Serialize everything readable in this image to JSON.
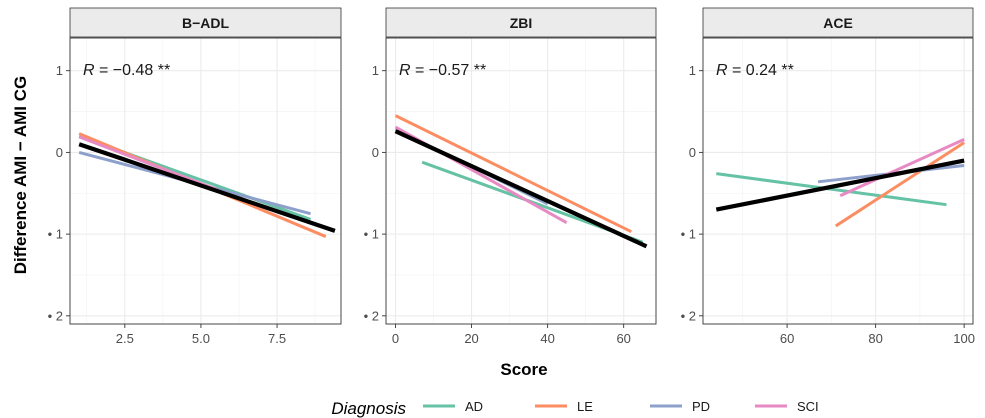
{
  "chart_data": {
    "type": "line",
    "xlabel": "Score",
    "ylabel": "Difference AMI − AMI CG",
    "ylim": [
      -2.1,
      1.4
    ],
    "yticks": [
      1,
      0,
      -1,
      -2
    ],
    "ytick_labels": [
      "1",
      "0",
      "• 1",
      "• 2"
    ],
    "grid": true,
    "legend": {
      "title": "Diagnosis",
      "placement": "bottom",
      "entries": [
        {
          "label": "AD",
          "color": "#66c2a5"
        },
        {
          "label": "LE",
          "color": "#fc8d62"
        },
        {
          "label": "PD",
          "color": "#8da0cb"
        },
        {
          "label": "SCI",
          "color": "#e78ac3"
        }
      ]
    },
    "overall_color": "#000000",
    "panels": [
      {
        "title": "B−ADL",
        "annotation": {
          "r_label": "R",
          "text": " = −0.48 **"
        },
        "xlim": [
          0.7,
          9.6
        ],
        "xticks": [
          2.5,
          5.0,
          7.5
        ],
        "xtick_labels": [
          "2.5",
          "5.0",
          "7.5"
        ],
        "series": [
          {
            "name": "AD",
            "x": [
              1,
              8.6
            ],
            "y": [
              0.2,
              -0.82
            ]
          },
          {
            "name": "LE",
            "x": [
              1,
              9.1
            ],
            "y": [
              0.23,
              -1.03
            ]
          },
          {
            "name": "PD",
            "x": [
              1,
              8.6
            ],
            "y": [
              0.0,
              -0.75
            ]
          },
          {
            "name": "SCI",
            "x": [
              1,
              5.5
            ],
            "y": [
              0.19,
              -0.45
            ]
          }
        ],
        "overall": {
          "x": [
            1,
            9.4
          ],
          "y": [
            0.1,
            -0.96
          ]
        }
      },
      {
        "title": "ZBI",
        "annotation": {
          "r_label": "R",
          "text": " = −0.57 **"
        },
        "xlim": [
          -2.5,
          68.5
        ],
        "xticks": [
          0,
          20,
          40,
          60
        ],
        "xtick_labels": [
          "0",
          "20",
          "40",
          "60"
        ],
        "series": [
          {
            "name": "AD",
            "x": [
              7,
              65
            ],
            "y": [
              -0.12,
              -1.1
            ]
          },
          {
            "name": "LE",
            "x": [
              0,
              62
            ],
            "y": [
              0.45,
              -0.97
            ]
          },
          {
            "name": "PD",
            "x": [
              0,
              40
            ],
            "y": [
              0.28,
              -0.63
            ]
          },
          {
            "name": "SCI",
            "x": [
              0,
              45
            ],
            "y": [
              0.31,
              -0.86
            ]
          }
        ],
        "overall": {
          "x": [
            0,
            66
          ],
          "y": [
            0.26,
            -1.15
          ]
        }
      },
      {
        "title": "ACE",
        "annotation": {
          "r_label": "R",
          "text": " = 0.24 **"
        },
        "xlim": [
          41,
          102
        ],
        "xticks": [
          60,
          80,
          100
        ],
        "xtick_labels": [
          "60",
          "80",
          "100"
        ],
        "series": [
          {
            "name": "AD",
            "x": [
              44,
              96
            ],
            "y": [
              -0.26,
              -0.64
            ]
          },
          {
            "name": "LE",
            "x": [
              71,
              100
            ],
            "y": [
              -0.9,
              0.12
            ]
          },
          {
            "name": "PD",
            "x": [
              67,
              100
            ],
            "y": [
              -0.36,
              -0.16
            ]
          },
          {
            "name": "SCI",
            "x": [
              72,
              100
            ],
            "y": [
              -0.53,
              0.16
            ]
          }
        ],
        "overall": {
          "x": [
            44,
            100
          ],
          "y": [
            -0.7,
            -0.1
          ]
        }
      }
    ]
  }
}
